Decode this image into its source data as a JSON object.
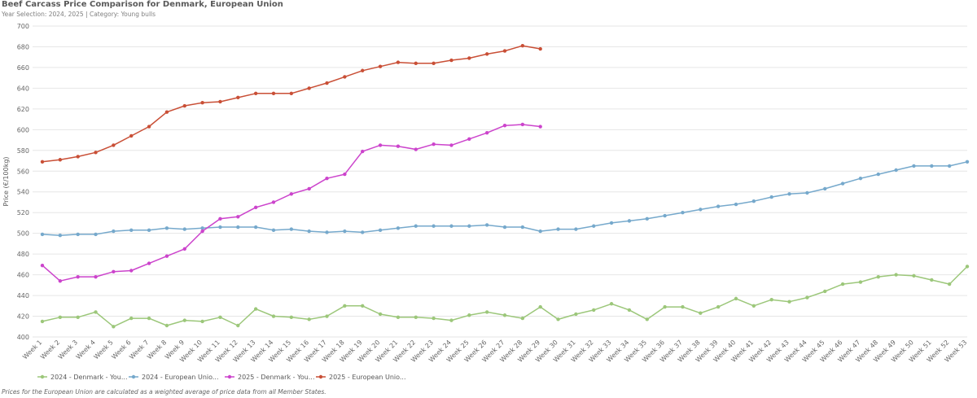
{
  "header": {
    "title": "Beef Carcass Price Comparison for Denmark, European Union",
    "subtitle": "Year Selection: 2024, 2025 | Category: Young bulls"
  },
  "footnote": "Prices for the European Union are calculated as a weighted average of price data from all Member States.",
  "chart_data": {
    "type": "line",
    "title": "Beef Carcass Price Comparison for Denmark, European Union",
    "xlabel": "",
    "ylabel": "Price (€/100kg)",
    "ylim": [
      400,
      700
    ],
    "yticks": [
      400,
      420,
      440,
      460,
      480,
      500,
      520,
      540,
      560,
      580,
      600,
      620,
      640,
      660,
      680,
      700
    ],
    "grid": true,
    "legend_position": "bottom-left",
    "categories": [
      "Week 1",
      "Week 2",
      "Week 3",
      "Week 4",
      "Week 5",
      "Week 6",
      "Week 7",
      "Week 8",
      "Week 9",
      "Week 10",
      "Week 11",
      "Week 12",
      "Week 13",
      "Week 14",
      "Week 15",
      "Week 16",
      "Week 17",
      "Week 18",
      "Week 19",
      "Week 20",
      "Week 21",
      "Week 22",
      "Week 23",
      "Week 24",
      "Week 25",
      "Week 26",
      "Week 27",
      "Week 28",
      "Week 29",
      "Week 30",
      "Week 31",
      "Week 32",
      "Week 33",
      "Week 34",
      "Week 35",
      "Week 36",
      "Week 37",
      "Week 38",
      "Week 39",
      "Week 40",
      "Week 41",
      "Week 42",
      "Week 43",
      "Week 44",
      "Week 45",
      "Week 46",
      "Week 47",
      "Week 48",
      "Week 49",
      "Week 50",
      "Week 51",
      "Week 52",
      "Week 53"
    ],
    "series": [
      {
        "name": "2024 - Denmark - You...",
        "color": "#9cc77a",
        "values": [
          415,
          419,
          419,
          424,
          410,
          418,
          418,
          411,
          416,
          415,
          419,
          411,
          427,
          420,
          419,
          417,
          420,
          430,
          430,
          422,
          419,
          419,
          418,
          416,
          421,
          424,
          421,
          418,
          429,
          417,
          422,
          426,
          432,
          426,
          417,
          429,
          429,
          423,
          429,
          437,
          430,
          436,
          434,
          438,
          444,
          451,
          453,
          458,
          460,
          459,
          455,
          451,
          468
        ]
      },
      {
        "name": "2024 - European Unio...",
        "color": "#76a9cc",
        "values": [
          499,
          498,
          499,
          499,
          502,
          503,
          503,
          505,
          504,
          505,
          506,
          506,
          506,
          503,
          504,
          502,
          501,
          502,
          501,
          503,
          505,
          507,
          507,
          507,
          507,
          508,
          506,
          506,
          502,
          504,
          504,
          507,
          510,
          512,
          514,
          517,
          520,
          523,
          526,
          528,
          531,
          535,
          538,
          539,
          543,
          548,
          553,
          557,
          561,
          565,
          565,
          565,
          569
        ]
      },
      {
        "name": "2025 - Denmark - You...",
        "color": "#cc44cc",
        "values": [
          469,
          454,
          458,
          458,
          463,
          464,
          471,
          478,
          485,
          502,
          514,
          516,
          525,
          530,
          538,
          543,
          553,
          557,
          579,
          585,
          584,
          581,
          586,
          585,
          591,
          597,
          604,
          605,
          603,
          null,
          null,
          null,
          null,
          null,
          null,
          null,
          null,
          null,
          null,
          null,
          null,
          null,
          null,
          null,
          null,
          null,
          null,
          null,
          null,
          null,
          null,
          null,
          null
        ]
      },
      {
        "name": "2025 - European Unio...",
        "color": "#c94f36",
        "values": [
          569,
          571,
          574,
          578,
          585,
          594,
          603,
          617,
          623,
          626,
          627,
          631,
          635,
          635,
          635,
          640,
          645,
          651,
          657,
          661,
          665,
          664,
          664,
          667,
          669,
          673,
          676,
          681,
          678,
          null,
          null,
          null,
          null,
          null,
          null,
          null,
          null,
          null,
          null,
          null,
          null,
          null,
          null,
          null,
          null,
          null,
          null,
          null,
          null,
          null,
          null,
          null,
          null
        ]
      }
    ]
  }
}
